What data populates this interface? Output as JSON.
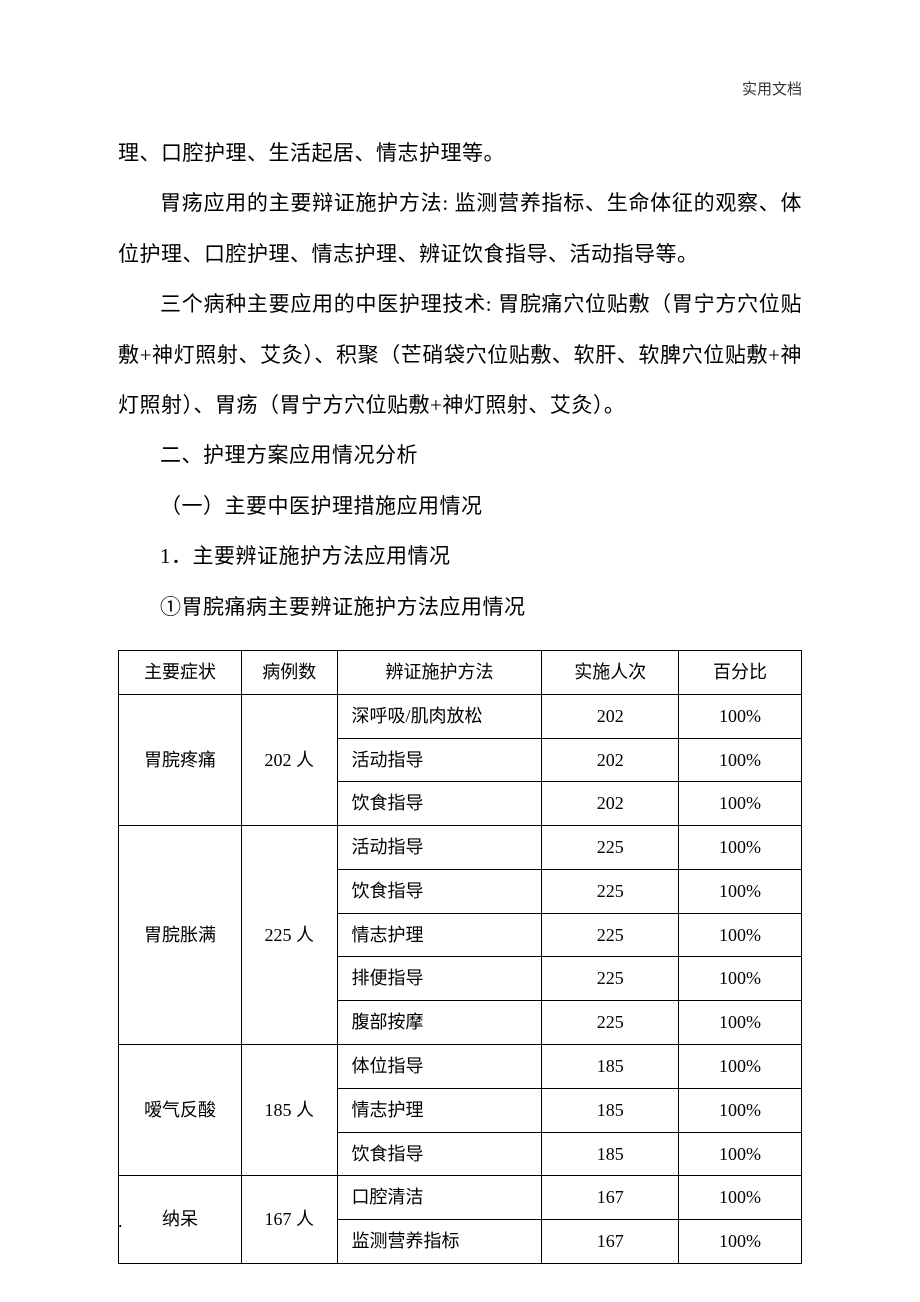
{
  "header": {
    "label": "实用文档"
  },
  "paragraphs": {
    "p1": "理、口腔护理、生活起居、情志护理等。",
    "p2": "胃疡应用的主要辩证施护方法: 监测营养指标、生命体征的观察、体位护理、口腔护理、情志护理、辨证饮食指导、活动指导等。",
    "p3": "三个病种主要应用的中医护理技术: 胃脘痛穴位贴敷（胃宁方穴位贴敷+神灯照射、艾灸）、积聚（芒硝袋穴位贴敷、软肝、软脾穴位贴敷+神灯照射）、胃疡（胃宁方穴位贴敷+神灯照射、艾灸）。",
    "p4": "二、护理方案应用情况分析",
    "p5": "（一）主要中医护理措施应用情况",
    "p6": "1．主要辨证施护方法应用情况",
    "p7": "①胃脘痛病主要辨证施护方法应用情况"
  },
  "table": {
    "columns": [
      "主要症状",
      "病例数",
      "辨证施护方法",
      "实施人次",
      "百分比"
    ],
    "groups": [
      {
        "symptom": "胃脘疼痛",
        "cases": "202 人",
        "rows": [
          {
            "method": "深呼吸/肌肉放松",
            "count": "202",
            "pct": "100%"
          },
          {
            "method": "活动指导",
            "count": "202",
            "pct": "100%"
          },
          {
            "method": "饮食指导",
            "count": "202",
            "pct": "100%"
          }
        ]
      },
      {
        "symptom": "胃脘胀满",
        "cases": "225 人",
        "rows": [
          {
            "method": "活动指导",
            "count": "225",
            "pct": "100%"
          },
          {
            "method": "饮食指导",
            "count": "225",
            "pct": "100%"
          },
          {
            "method": "情志护理",
            "count": "225",
            "pct": "100%"
          },
          {
            "method": "排便指导",
            "count": "225",
            "pct": "100%"
          },
          {
            "method": "腹部按摩",
            "count": "225",
            "pct": "100%"
          }
        ]
      },
      {
        "symptom": "嗳气反酸",
        "cases": "185 人",
        "rows": [
          {
            "method": "体位指导",
            "count": "185",
            "pct": "100%"
          },
          {
            "method": "情志护理",
            "count": "185",
            "pct": "100%"
          },
          {
            "method": "饮食指导",
            "count": "185",
            "pct": "100%"
          }
        ]
      },
      {
        "symptom": "纳呆",
        "cases": "167 人",
        "rows": [
          {
            "method": "口腔清洁",
            "count": "167",
            "pct": "100%"
          },
          {
            "method": "监测营养指标",
            "count": "167",
            "pct": "100%"
          }
        ]
      }
    ]
  },
  "footer": {
    "dot": "."
  }
}
